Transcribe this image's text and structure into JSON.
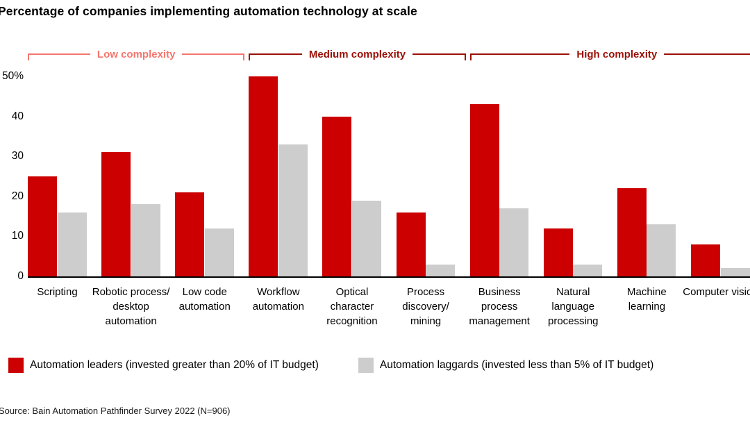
{
  "title": "Percentage of companies implementing automation technology at scale",
  "source": "Source: Bain Automation Pathfinder Survey 2022 (N=906)",
  "complexity_groups": [
    {
      "label": "Low complexity",
      "color": "#f5756e",
      "start": 0,
      "end": 2
    },
    {
      "label": "Medium complexity",
      "color": "#9a0f06",
      "start": 3,
      "end": 5
    },
    {
      "label": "High complexity",
      "color": "#9a0f06",
      "start": 6,
      "end": 9
    }
  ],
  "chart_data": {
    "type": "bar",
    "title": "Percentage of companies implementing automation technology at scale",
    "categories": [
      "Scripting",
      "Robotic process/ desktop automation",
      "Low code automation",
      "Workflow automation",
      "Optical character recognition",
      "Process discovery/ mining",
      "Business process management",
      "Natural language processing",
      "Machine learning",
      "Computer vision"
    ],
    "series": [
      {
        "name": "Automation leaders (invested greater than 20% of IT budget)",
        "color": "#cc0000",
        "values": [
          25,
          31,
          21,
          50,
          40,
          16,
          43,
          12,
          22,
          8
        ]
      },
      {
        "name": "Automation laggards (invested less than 5% of IT budget)",
        "color": "#cdcdcd",
        "values": [
          16,
          18,
          12,
          33,
          19,
          3,
          17,
          3,
          13,
          2
        ]
      }
    ],
    "xlabel": "",
    "ylabel": "",
    "ylim": [
      0,
      50
    ],
    "yticks": [
      {
        "value": 50,
        "label": "50%"
      },
      {
        "value": 40,
        "label": "40"
      },
      {
        "value": 30,
        "label": "30"
      },
      {
        "value": 20,
        "label": "20"
      },
      {
        "value": 10,
        "label": "10"
      },
      {
        "value": 0,
        "label": "0"
      }
    ],
    "grid": false,
    "legend_position": "bottom"
  }
}
